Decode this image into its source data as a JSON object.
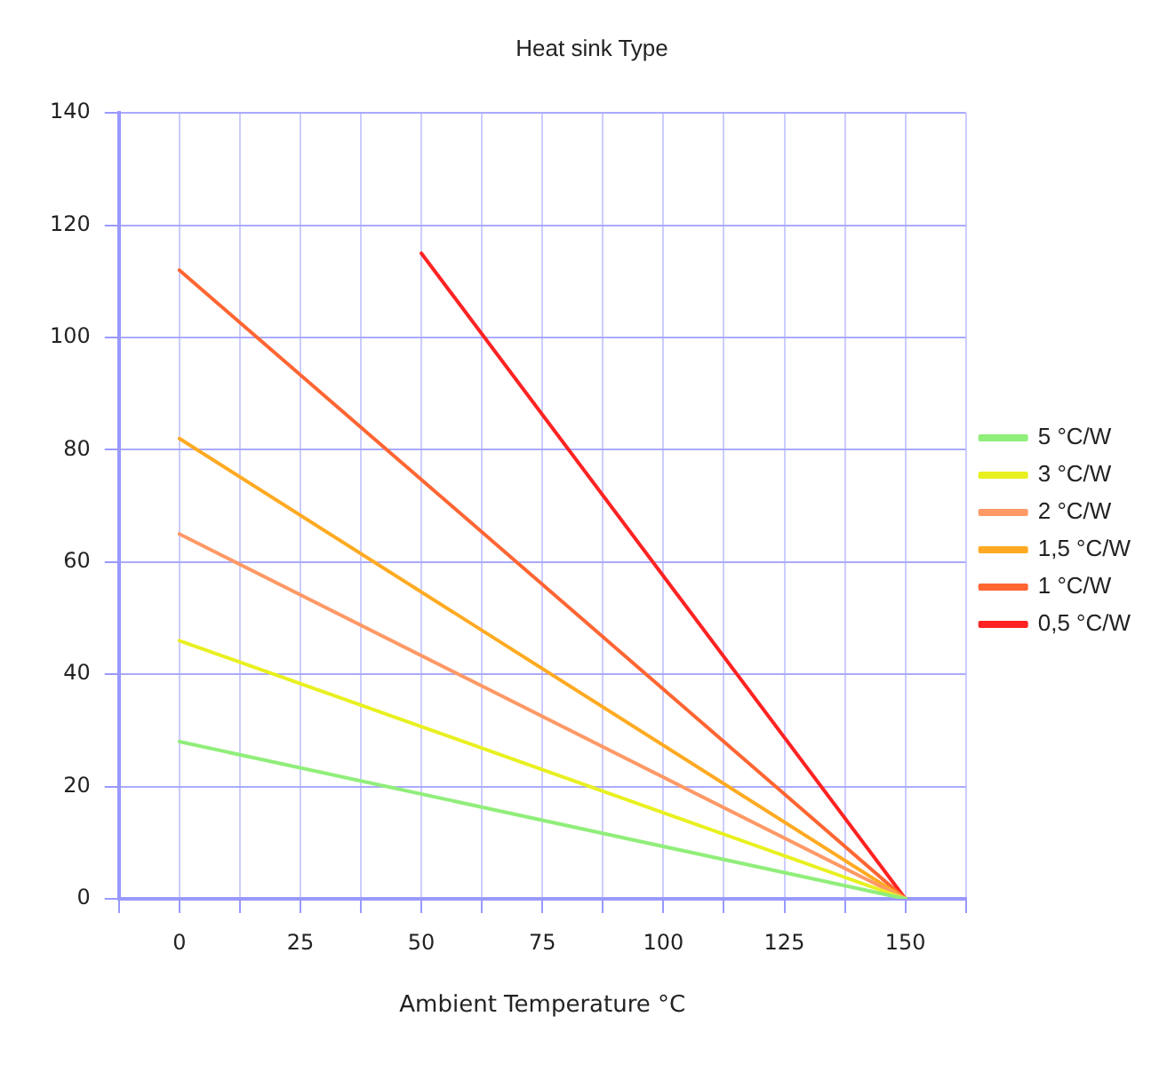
{
  "chart_data": {
    "type": "line",
    "title": "Heat sink Type",
    "xlabel": "Ambient Temperature °C",
    "xlim": [
      -12.5,
      162.5
    ],
    "xticks": [
      {
        "value": -12.5,
        "label": null
      },
      0,
      {
        "value": 12.5,
        "label": null
      },
      25,
      {
        "value": 37.5,
        "label": null
      },
      50,
      {
        "value": 62.5,
        "label": null
      },
      75,
      {
        "value": 87.5,
        "label": null
      },
      100,
      {
        "value": 112.5,
        "label": null
      },
      125,
      {
        "value": 137.5,
        "label": null
      },
      150,
      {
        "value": 162.5,
        "label": null
      }
    ],
    "ylim": [
      0,
      140
    ],
    "yticks": [
      0,
      20,
      40,
      60,
      80,
      100,
      120,
      140
    ],
    "series": [
      {
        "name": "5 °C/W",
        "color": "#90ee7a",
        "x": [
          0,
          150
        ],
        "values": [
          28,
          0
        ]
      },
      {
        "name": "3 °C/W",
        "color": "#e8f020",
        "x": [
          0,
          150
        ],
        "values": [
          46,
          0
        ]
      },
      {
        "name": "2 °C/W",
        "color": "#ff9966",
        "x": [
          0,
          150
        ],
        "values": [
          65,
          0
        ]
      },
      {
        "name": "1,5 °C/W",
        "color": "#ffaa22",
        "x": [
          0,
          150
        ],
        "values": [
          82,
          0
        ]
      },
      {
        "name": "1 °C/W",
        "color": "#ff6633",
        "x": [
          0,
          150
        ],
        "values": [
          112,
          0
        ]
      },
      {
        "name": "0,5 °C/W",
        "color": "#ff2222",
        "x": [
          50,
          150
        ],
        "values": [
          115,
          0
        ]
      }
    ],
    "grid": true,
    "legend": "right",
    "marker": "none",
    "line_style": "solid"
  }
}
